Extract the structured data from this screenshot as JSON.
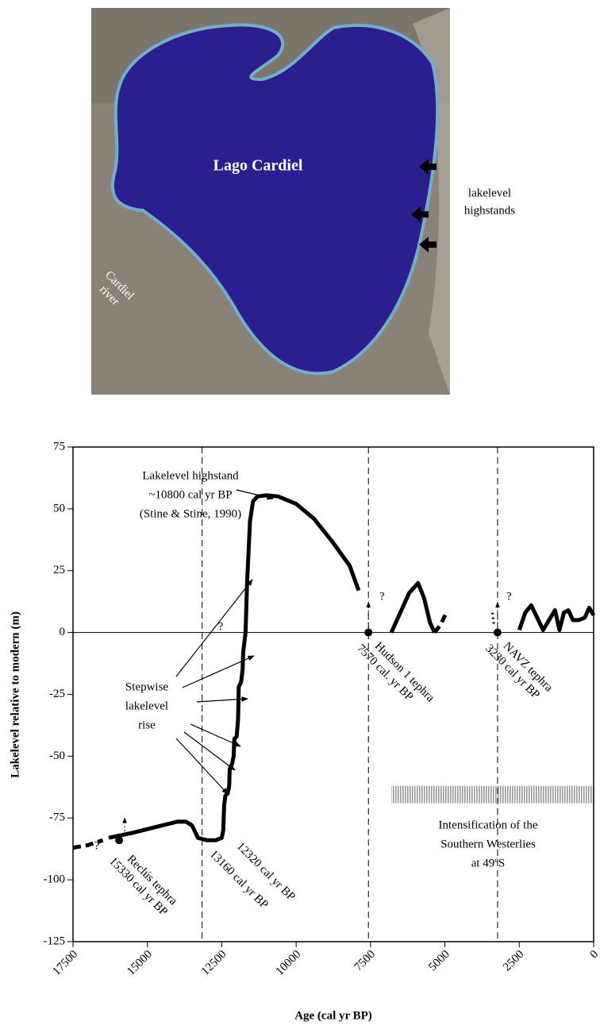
{
  "photo": {
    "lake": "Lago Cardiel",
    "river": [
      "Cardiel",
      "river"
    ],
    "highstands": [
      "lakelevel",
      "highstands"
    ]
  },
  "chart_data": {
    "type": "line",
    "xlabel": "Age (cal yr BP)",
    "ylabel": "Lakelevel relative to modern (m)",
    "xlim": [
      17500,
      0
    ],
    "ylim": [
      -125,
      75
    ],
    "xticks": [
      17500,
      15000,
      12500,
      10000,
      7500,
      5000,
      2500,
      0
    ],
    "yticks": [
      -125,
      -100,
      -75,
      -50,
      -25,
      0,
      25,
      50,
      75
    ],
    "color": "#000000",
    "hline": 0,
    "vlines": [
      13160,
      7570,
      3230
    ],
    "segments": [
      {
        "style": "dashed",
        "x": [
          17500,
          17000,
          16500
        ],
        "values": [
          -87,
          -86,
          -84
        ]
      },
      {
        "style": "solid",
        "x": [
          16300,
          15500,
          14500,
          14000,
          13700,
          13500,
          13300,
          13000,
          12700,
          12500,
          12450,
          12420,
          12380,
          12300,
          12250,
          12230,
          12150,
          12100,
          12080,
          12000,
          11950,
          11930,
          11850,
          11800,
          11780,
          11700,
          11650,
          11550,
          11450,
          11300,
          11000,
          10600,
          10000,
          9400,
          8800,
          8200,
          7900
        ],
        "values": [
          -83,
          -81,
          -78,
          -76.5,
          -76.5,
          -78,
          -83,
          -84,
          -84,
          -83,
          -80,
          -70,
          -66,
          -65,
          -62,
          -55,
          -53,
          -50,
          -43,
          -42,
          -35,
          -22,
          -20,
          -15,
          -8,
          0,
          20,
          45,
          53,
          55,
          55.5,
          55,
          52,
          46,
          37,
          27,
          17
        ]
      },
      {
        "style": "solid",
        "x": [
          6800,
          6500,
          6200,
          5900,
          5700,
          5500,
          5350
        ],
        "values": [
          0,
          8,
          16,
          20,
          14,
          4,
          0
        ]
      },
      {
        "style": "dashed",
        "x": [
          5350,
          5150,
          4950
        ],
        "values": [
          0,
          3,
          8
        ]
      },
      {
        "style": "dotted",
        "x": [
          3400,
          3350
        ],
        "values": [
          8,
          3
        ]
      },
      {
        "style": "solid",
        "x": [
          2500,
          2300,
          2100,
          1900,
          1700,
          1500,
          1300,
          1150,
          1000,
          850,
          700,
          500,
          300,
          150,
          0
        ],
        "values": [
          1,
          8,
          11,
          6,
          1,
          5,
          9,
          1,
          8,
          9,
          5,
          5,
          6,
          10,
          7
        ]
      }
    ],
    "points": {
      "x": [
        15950,
        7570,
        3230
      ],
      "values": [
        -84,
        0,
        0
      ]
    },
    "band": {
      "x": [
        6800,
        0
      ],
      "values": [
        -69,
        -62
      ]
    },
    "annotations": {
      "highstand": [
        "Lakelevel highstand",
        "~10800 cal yr BP",
        "(Stine & Stine, 1990)"
      ],
      "stepwise": [
        "Stepwise",
        "lakelevel",
        "rise"
      ],
      "intensification": [
        "Intensification of the",
        "Southern Westerlies",
        "at 49ºS"
      ],
      "reclus": [
        "Reclús tephra",
        "15330 cal yr BP"
      ],
      "age_a": "13160 cal yr BP",
      "age_b": "12320 cal yr BP",
      "hudson": [
        "Hudson 1 tephra",
        "7570 cal. yr BP"
      ],
      "navz": [
        "NAVZ tephra",
        "3230 cal yr BP"
      ],
      "question": "?"
    }
  }
}
